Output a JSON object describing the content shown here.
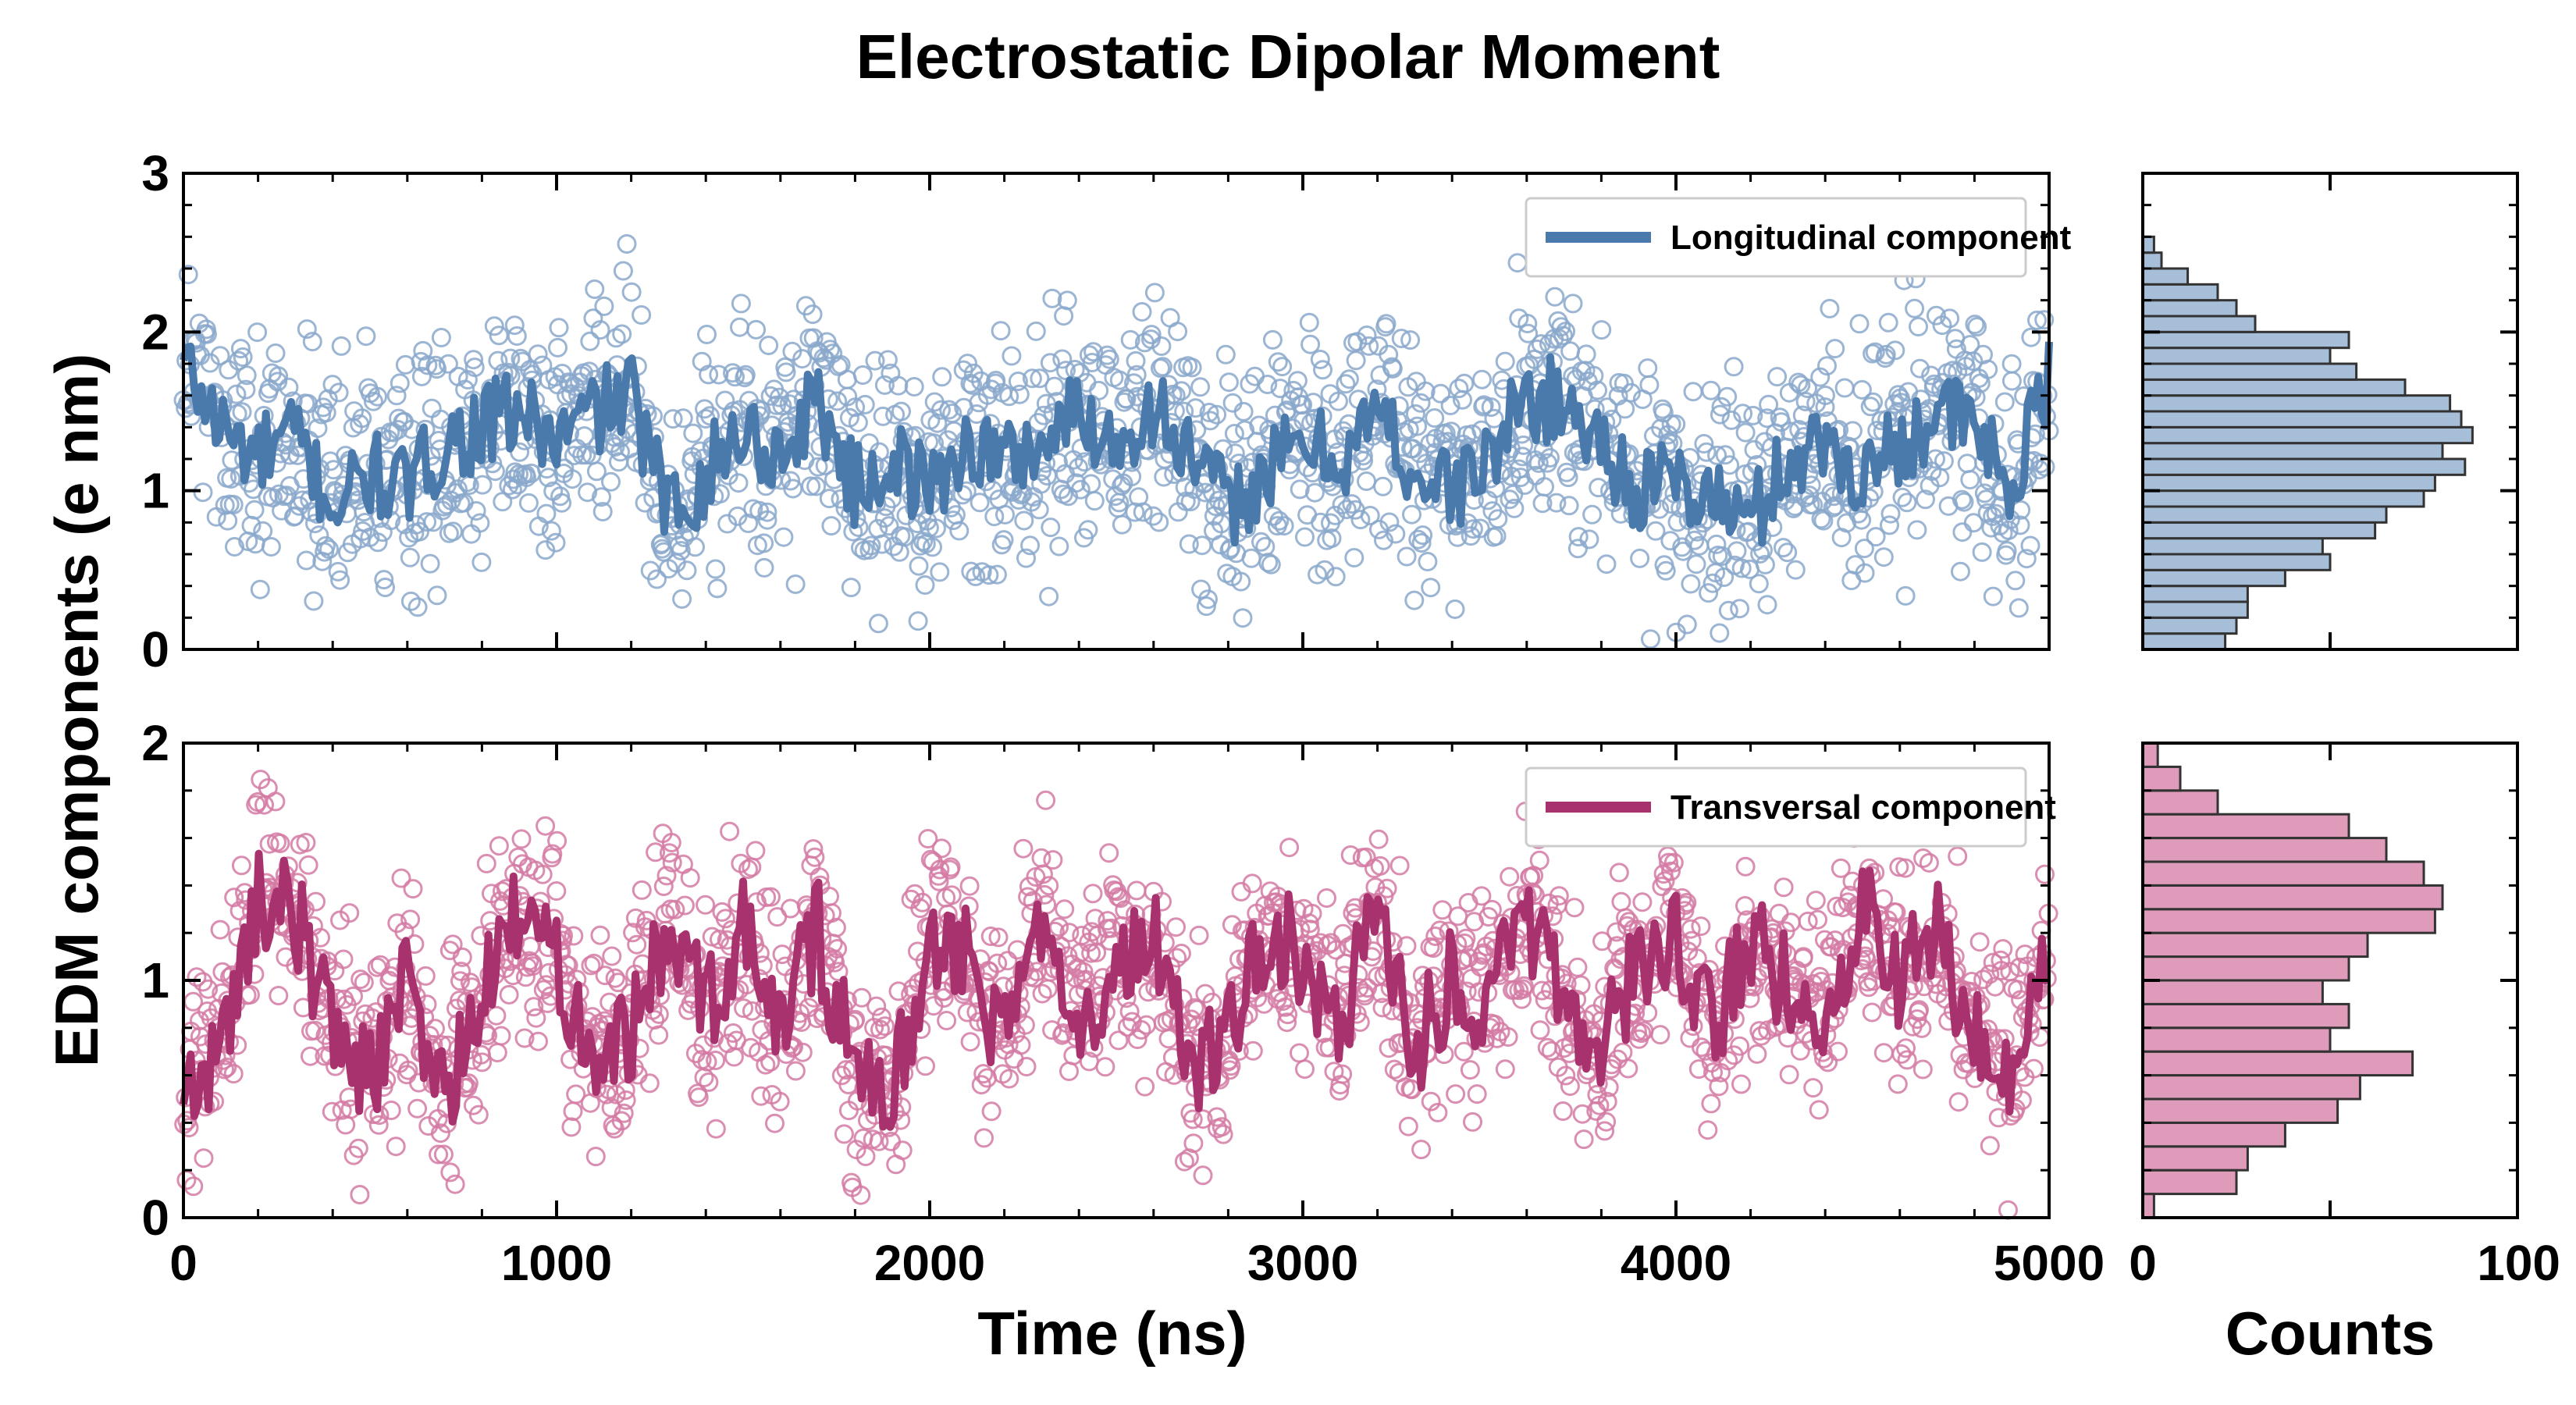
{
  "chart_data": {
    "title": "Electrostatic Dipolar Moment",
    "ylabel": "EDM components (e nm)",
    "panels": [
      {
        "id": "longitudinal",
        "type": "scatter+line",
        "legend_label": "Longitudinal component",
        "legend_position": "top-right",
        "color_line": "#4a79ab",
        "color_scatter": "#8aa8cb",
        "xlim": [
          0,
          5000
        ],
        "ylim": [
          0,
          3
        ],
        "yticks": [
          0,
          1,
          2,
          3
        ],
        "smoothed_line": {
          "x": [
            0,
            100,
            200,
            300,
            400,
            500,
            600,
            700,
            800,
            900,
            1000,
            1100,
            1200,
            1300,
            1400,
            1500,
            1600,
            1700,
            1800,
            1900,
            2000,
            2100,
            2200,
            2300,
            2400,
            2500,
            2600,
            2700,
            2800,
            2900,
            3000,
            3100,
            3200,
            3300,
            3400,
            3500,
            3600,
            3700,
            3800,
            3900,
            4000,
            4100,
            4200,
            4300,
            4400,
            4500,
            4600,
            4700,
            4800,
            4900,
            5000
          ],
          "y": [
            1.8,
            1.4,
            1.2,
            1.35,
            0.9,
            1.1,
            1.0,
            1.3,
            1.4,
            1.5,
            1.3,
            1.5,
            1.6,
            0.85,
            1.1,
            1.4,
            1.2,
            1.6,
            1.0,
            1.2,
            1.0,
            1.3,
            1.2,
            1.3,
            1.5,
            1.3,
            1.55,
            1.2,
            0.9,
            1.1,
            1.3,
            1.2,
            1.5,
            1.1,
            1.0,
            1.2,
            1.6,
            1.55,
            1.3,
            1.0,
            1.05,
            0.95,
            0.8,
            1.2,
            1.3,
            1.1,
            1.3,
            1.5,
            1.4,
            1.0,
            1.7
          ]
        },
        "histogram": {
          "bins": [
            0.0,
            0.1,
            0.2,
            0.3,
            0.4,
            0.5,
            0.6,
            0.7,
            0.8,
            0.9,
            1.0,
            1.1,
            1.2,
            1.3,
            1.4,
            1.5,
            1.6,
            1.7,
            1.8,
            1.9,
            2.0,
            2.1,
            2.2,
            2.3,
            2.4,
            2.5
          ],
          "counts": [
            22,
            25,
            28,
            28,
            38,
            50,
            48,
            62,
            65,
            75,
            78,
            86,
            80,
            88,
            85,
            82,
            70,
            57,
            50,
            55,
            30,
            25,
            20,
            12,
            5,
            3
          ]
        },
        "xlabel_hist": "",
        "xlim_hist": [
          0,
          100
        ]
      },
      {
        "id": "transversal",
        "type": "scatter+line",
        "legend_label": "Transversal component",
        "legend_position": "top-right",
        "color_line": "#a8326e",
        "color_scatter": "#d47aa3",
        "xlim": [
          0,
          5000
        ],
        "ylim": [
          0,
          2
        ],
        "yticks": [
          0,
          1,
          2
        ],
        "xticks": [
          0,
          1000,
          2000,
          3000,
          4000,
          5000
        ],
        "xlabel": "Time (ns)",
        "smoothed_line": {
          "x": [
            0,
            100,
            200,
            300,
            400,
            500,
            600,
            700,
            800,
            900,
            1000,
            1100,
            1200,
            1300,
            1400,
            1500,
            1600,
            1700,
            1800,
            1900,
            2000,
            2100,
            2200,
            2300,
            2400,
            2500,
            2600,
            2700,
            2800,
            2900,
            3000,
            3100,
            3200,
            3300,
            3400,
            3500,
            3600,
            3700,
            3800,
            3900,
            4000,
            4100,
            4200,
            4300,
            4400,
            4500,
            4600,
            4700,
            4800,
            4900,
            5000
          ],
          "y": [
            0.5,
            0.7,
            1.35,
            1.3,
            0.8,
            0.6,
            1.0,
            0.5,
            0.9,
            1.3,
            1.1,
            0.7,
            0.8,
            1.2,
            0.9,
            1.2,
            0.8,
            1.2,
            0.6,
            0.5,
            1.2,
            1.1,
            0.7,
            1.3,
            0.9,
            1.0,
            1.2,
            0.6,
            0.8,
            1.2,
            1.1,
            0.8,
            1.3,
            0.7,
            1.0,
            0.9,
            1.25,
            0.9,
            0.7,
            1.1,
            1.2,
            0.8,
            1.15,
            1.0,
            0.9,
            1.3,
            1.0,
            1.2,
            0.8,
            0.6,
            1.2
          ]
        },
        "histogram": {
          "bins": [
            0.0,
            0.1,
            0.2,
            0.3,
            0.4,
            0.5,
            0.6,
            0.7,
            0.8,
            0.9,
            1.0,
            1.1,
            1.2,
            1.3,
            1.4,
            1.5,
            1.6,
            1.7,
            1.8,
            1.9
          ],
          "counts": [
            3,
            25,
            28,
            38,
            52,
            58,
            72,
            50,
            55,
            48,
            55,
            60,
            78,
            80,
            75,
            65,
            55,
            20,
            10,
            4
          ]
        },
        "xlabel_hist": "Counts",
        "xlim_hist": [
          0,
          100
        ],
        "xticks_hist": [
          0,
          100
        ]
      }
    ]
  }
}
